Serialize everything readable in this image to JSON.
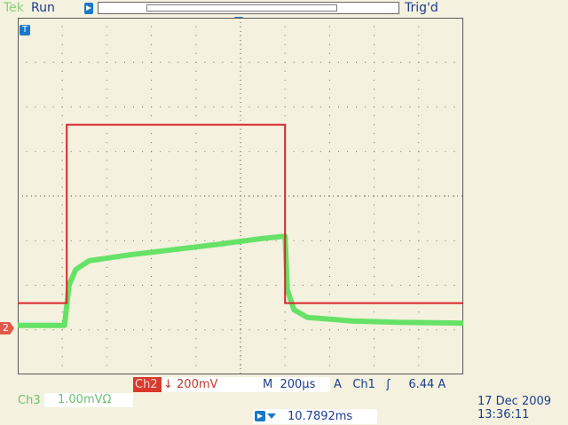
{
  "status": {
    "brand": "Tek",
    "run_state": "Run",
    "trigger_state": "Trig'd"
  },
  "markers": {
    "trigger_level_label": "T",
    "ch2_marker_label": "2"
  },
  "readouts": {
    "ch2_label": "Ch2",
    "ch2_scale": "200mV",
    "timebase_label": "M",
    "timebase_value": "200µs",
    "trigger_label": "A",
    "trigger_source": "Ch1",
    "trigger_slope_symbol": "ʃ",
    "trigger_level": "6.44 A",
    "ch3_label": "Ch3",
    "ch3_scale": "1.00mVΩ",
    "horizontal_position": "10.7892ms",
    "date": "17 Dec  2009",
    "time": "13:36:11"
  },
  "colors": {
    "ch1_trace": "#d8262a",
    "ch3_trace": "#57e05a",
    "accent": "#1a78c8",
    "text": "#1a3d8c"
  },
  "chart_data": {
    "type": "line",
    "x_divisions": 10,
    "y_divisions": 8,
    "grid": true,
    "series": [
      {
        "channel": "ch1",
        "points": [
          [
            0,
            1.6
          ],
          [
            1.1,
            1.6
          ],
          [
            1.1,
            5.6
          ],
          [
            6,
            5.6
          ],
          [
            6,
            1.6
          ],
          [
            10,
            1.6
          ]
        ]
      },
      {
        "channel": "ch3",
        "points": [
          [
            0,
            1.1
          ],
          [
            1.05,
            1.1
          ],
          [
            1.15,
            2
          ],
          [
            1.3,
            2.35
          ],
          [
            1.6,
            2.55
          ],
          [
            2.5,
            2.68
          ],
          [
            3.5,
            2.8
          ],
          [
            4.5,
            2.92
          ],
          [
            5.5,
            3.05
          ],
          [
            6,
            3.1
          ],
          [
            6.05,
            1.9
          ],
          [
            6.2,
            1.45
          ],
          [
            6.5,
            1.28
          ],
          [
            7.5,
            1.2
          ],
          [
            8.5,
            1.17
          ],
          [
            10,
            1.15
          ]
        ]
      }
    ]
  }
}
